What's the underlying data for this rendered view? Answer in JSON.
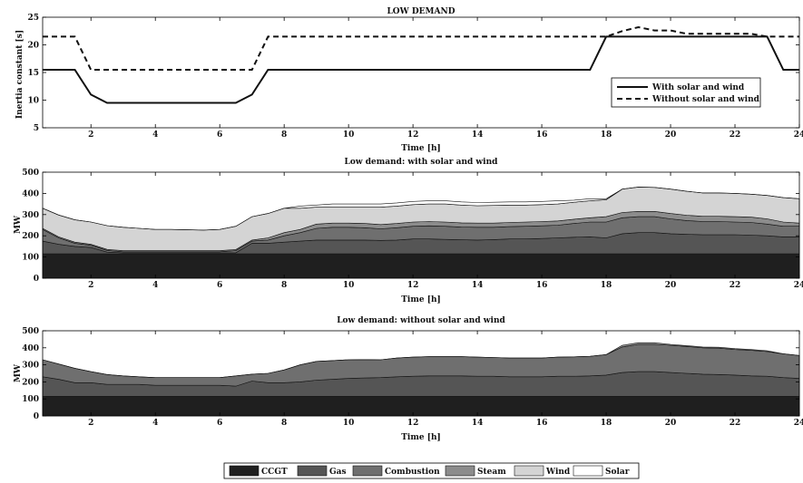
{
  "chart_data": [
    {
      "type": "line",
      "title": "LOW DEMAND",
      "xlabel": "Time [h]",
      "ylabel": "Inertia constant [s]",
      "xlim": [
        0.5,
        24
      ],
      "ylim": [
        5,
        25
      ],
      "xticks": [
        2,
        4,
        6,
        8,
        10,
        12,
        14,
        16,
        18,
        20,
        22,
        24
      ],
      "yticks": [
        5,
        10,
        15,
        20,
        25
      ],
      "legend_position": "lower-right",
      "series": [
        {
          "name": "With solar and wind",
          "style": "solid",
          "x": [
            0.5,
            1.5,
            2,
            2.5,
            3,
            4,
            5,
            6,
            6.5,
            7,
            7.5,
            8,
            10,
            12,
            14,
            16,
            17.5,
            18,
            19,
            20,
            21,
            22,
            23,
            23.5,
            24
          ],
          "y": [
            15.5,
            15.5,
            11,
            9.5,
            9.5,
            9.5,
            9.5,
            9.5,
            9.5,
            11,
            15.5,
            15.5,
            15.5,
            15.5,
            15.5,
            15.5,
            15.5,
            21.5,
            21.5,
            21.5,
            21.5,
            21.5,
            21.5,
            15.5,
            15.5
          ]
        },
        {
          "name": "Without solar and wind",
          "style": "dashed",
          "x": [
            0.5,
            1.5,
            2,
            3,
            4,
            5,
            6,
            7,
            7.5,
            8,
            10,
            12,
            14,
            16,
            17.5,
            18,
            18.5,
            19,
            19.5,
            20,
            20.5,
            21,
            22,
            22.5,
            23,
            23.5,
            24
          ],
          "y": [
            21.5,
            21.5,
            15.5,
            15.5,
            15.5,
            15.5,
            15.5,
            15.5,
            21.5,
            21.5,
            21.5,
            21.5,
            21.5,
            21.5,
            21.5,
            21.5,
            22.5,
            23.2,
            22.6,
            22.6,
            22,
            22,
            22,
            22,
            21.5,
            21.5,
            21.5
          ]
        }
      ]
    },
    {
      "type": "area",
      "title": "Low demand: with solar and wind",
      "xlabel": "Time [h]",
      "ylabel": "MW",
      "xlim": [
        0.5,
        24
      ],
      "ylim": [
        0,
        500
      ],
      "xticks": [
        2,
        4,
        6,
        8,
        10,
        12,
        14,
        16,
        18,
        20,
        22,
        24
      ],
      "yticks": [
        0,
        100,
        200,
        300,
        400,
        500
      ],
      "x": [
        0.5,
        1,
        1.5,
        2,
        2.5,
        3,
        3.5,
        4,
        4.5,
        5,
        5.5,
        6,
        6.5,
        7,
        7.5,
        8,
        8.5,
        9,
        9.5,
        10,
        10.5,
        11,
        11.5,
        12,
        12.5,
        13,
        13.5,
        14,
        14.5,
        15,
        15.5,
        16,
        16.5,
        17,
        17.5,
        18,
        18.5,
        19,
        19.5,
        20,
        20.5,
        21,
        21.5,
        22,
        22.5,
        23,
        23.5,
        24
      ],
      "series": [
        {
          "name": "CCGT",
          "color": "#1f1f1f",
          "values": [
            115,
            115,
            115,
            115,
            115,
            115,
            115,
            115,
            115,
            115,
            115,
            115,
            115,
            115,
            115,
            115,
            115,
            115,
            115,
            115,
            115,
            115,
            115,
            115,
            115,
            115,
            115,
            115,
            115,
            115,
            115,
            115,
            115,
            115,
            115,
            115,
            115,
            115,
            115,
            115,
            115,
            115,
            115,
            115,
            115,
            115,
            115,
            115
          ]
        },
        {
          "name": "Gas",
          "color": "#555555",
          "values": [
            60,
            45,
            35,
            30,
            8,
            5,
            5,
            5,
            5,
            5,
            5,
            5,
            5,
            50,
            50,
            55,
            60,
            65,
            65,
            65,
            65,
            63,
            65,
            70,
            70,
            68,
            66,
            65,
            67,
            70,
            70,
            72,
            75,
            78,
            80,
            75,
            95,
            100,
            100,
            95,
            92,
            90,
            90,
            90,
            88,
            85,
            80,
            80
          ]
        },
        {
          "name": "Combustion",
          "color": "#6f6f6f",
          "values": [
            55,
            30,
            15,
            10,
            8,
            5,
            5,
            5,
            5,
            5,
            5,
            5,
            10,
            10,
            15,
            30,
            40,
            55,
            60,
            60,
            58,
            55,
            58,
            60,
            62,
            62,
            60,
            60,
            58,
            58,
            60,
            60,
            60,
            65,
            70,
            75,
            75,
            75,
            75,
            70,
            65,
            62,
            62,
            60,
            60,
            55,
            50,
            50
          ]
        },
        {
          "name": "Steam",
          "color": "#8c8c8c",
          "values": [
            5,
            5,
            5,
            5,
            5,
            5,
            5,
            5,
            5,
            5,
            5,
            5,
            5,
            5,
            10,
            15,
            15,
            20,
            20,
            20,
            20,
            20,
            20,
            20,
            20,
            20,
            20,
            20,
            20,
            20,
            20,
            20,
            20,
            20,
            20,
            25,
            25,
            25,
            25,
            25,
            25,
            25,
            25,
            25,
            25,
            25,
            20,
            15
          ]
        },
        {
          "name": "Wind",
          "color": "#d4d4d4",
          "values": [
            95,
            103,
            105,
            105,
            112,
            110,
            105,
            100,
            100,
            98,
            97,
            100,
            110,
            110,
            115,
            115,
            100,
            80,
            75,
            75,
            77,
            82,
            82,
            82,
            83,
            85,
            84,
            82,
            83,
            82,
            80,
            80,
            80,
            80,
            80,
            80,
            110,
            115,
            113,
            115,
            113,
            110,
            110,
            110,
            108,
            110,
            115,
            115
          ]
        },
        {
          "name": "Solar",
          "color": "#ffffff",
          "values": [
            0,
            0,
            0,
            0,
            0,
            0,
            0,
            0,
            0,
            0,
            0,
            0,
            0,
            0,
            0,
            0,
            10,
            10,
            15,
            15,
            15,
            15,
            15,
            15,
            15,
            15,
            15,
            15,
            15,
            15,
            15,
            15,
            15,
            10,
            10,
            5,
            0,
            0,
            0,
            0,
            0,
            0,
            0,
            0,
            0,
            0,
            0,
            0
          ]
        }
      ]
    },
    {
      "type": "area",
      "title": "Low demand: without solar and wind",
      "xlabel": "Time [h]",
      "ylabel": "MW",
      "xlim": [
        0.5,
        24
      ],
      "ylim": [
        0,
        500
      ],
      "xticks": [
        2,
        4,
        6,
        8,
        10,
        12,
        14,
        16,
        18,
        20,
        22,
        24
      ],
      "yticks": [
        0,
        100,
        200,
        300,
        400,
        500
      ],
      "x": [
        0.5,
        1,
        1.5,
        2,
        2.5,
        3,
        3.5,
        4,
        4.5,
        5,
        5.5,
        6,
        6.5,
        7,
        7.5,
        8,
        8.5,
        9,
        9.5,
        10,
        10.5,
        11,
        11.5,
        12,
        12.5,
        13,
        13.5,
        14,
        14.5,
        15,
        15.5,
        16,
        16.5,
        17,
        17.5,
        18,
        18.5,
        19,
        19.5,
        20,
        20.5,
        21,
        21.5,
        22,
        22.5,
        23,
        23.5,
        24
      ],
      "series": [
        {
          "name": "CCGT",
          "color": "#1f1f1f",
          "values": [
            115,
            115,
            115,
            115,
            115,
            115,
            115,
            115,
            115,
            115,
            115,
            115,
            115,
            115,
            115,
            115,
            115,
            115,
            115,
            115,
            115,
            115,
            115,
            115,
            115,
            115,
            115,
            115,
            115,
            115,
            115,
            115,
            115,
            115,
            115,
            115,
            115,
            115,
            115,
            115,
            115,
            115,
            115,
            115,
            115,
            115,
            115,
            115
          ]
        },
        {
          "name": "Gas",
          "color": "#555555",
          "values": [
            115,
            100,
            80,
            80,
            70,
            70,
            70,
            65,
            65,
            65,
            65,
            65,
            60,
            90,
            80,
            80,
            85,
            95,
            100,
            105,
            108,
            110,
            115,
            118,
            120,
            120,
            120,
            118,
            118,
            115,
            115,
            115,
            118,
            118,
            120,
            125,
            140,
            145,
            145,
            140,
            135,
            130,
            128,
            125,
            120,
            118,
            110,
            105
          ]
        },
        {
          "name": "Combustion",
          "color": "#6f6f6f",
          "values": [
            100,
            90,
            85,
            65,
            58,
            50,
            45,
            45,
            45,
            45,
            45,
            45,
            60,
            40,
            55,
            75,
            100,
            110,
            110,
            110,
            108,
            105,
            110,
            112,
            113,
            113,
            113,
            112,
            110,
            110,
            110,
            110,
            112,
            114,
            115,
            120,
            150,
            160,
            160,
            160,
            158,
            155,
            155,
            150,
            150,
            145,
            140,
            135
          ]
        },
        {
          "name": "Steam",
          "color": "#8c8c8c",
          "values": [
            0,
            0,
            0,
            0,
            0,
            0,
            0,
            0,
            0,
            0,
            0,
            0,
            0,
            0,
            0,
            0,
            0,
            0,
            0,
            0,
            0,
            0,
            0,
            0,
            0,
            0,
            0,
            0,
            0,
            0,
            0,
            0,
            0,
            0,
            0,
            0,
            10,
            10,
            10,
            5,
            5,
            5,
            5,
            5,
            5,
            5,
            0,
            0
          ]
        },
        {
          "name": "Wind",
          "color": "#d4d4d4",
          "values": [
            0,
            0,
            0,
            0,
            0,
            0,
            0,
            0,
            0,
            0,
            0,
            0,
            0,
            0,
            0,
            0,
            0,
            0,
            0,
            0,
            0,
            0,
            0,
            0,
            0,
            0,
            0,
            0,
            0,
            0,
            0,
            0,
            0,
            0,
            0,
            0,
            0,
            0,
            0,
            0,
            0,
            0,
            0,
            0,
            0,
            0,
            0,
            0
          ]
        },
        {
          "name": "Solar",
          "color": "#ffffff",
          "values": [
            0,
            0,
            0,
            0,
            0,
            0,
            0,
            0,
            0,
            0,
            0,
            0,
            0,
            0,
            0,
            0,
            0,
            0,
            0,
            0,
            0,
            0,
            0,
            0,
            0,
            0,
            0,
            0,
            0,
            0,
            0,
            0,
            0,
            0,
            0,
            0,
            0,
            0,
            0,
            0,
            0,
            0,
            0,
            0,
            0,
            0,
            0,
            0
          ]
        }
      ]
    }
  ],
  "legend": {
    "position": "bottom-center",
    "items": [
      {
        "label": "CCGT",
        "color": "#1f1f1f"
      },
      {
        "label": "Gas",
        "color": "#555555"
      },
      {
        "label": "Combustion",
        "color": "#6f6f6f"
      },
      {
        "label": "Steam",
        "color": "#8c8c8c"
      },
      {
        "label": "Wind",
        "color": "#d4d4d4"
      },
      {
        "label": "Solar",
        "color": "#ffffff"
      }
    ]
  }
}
